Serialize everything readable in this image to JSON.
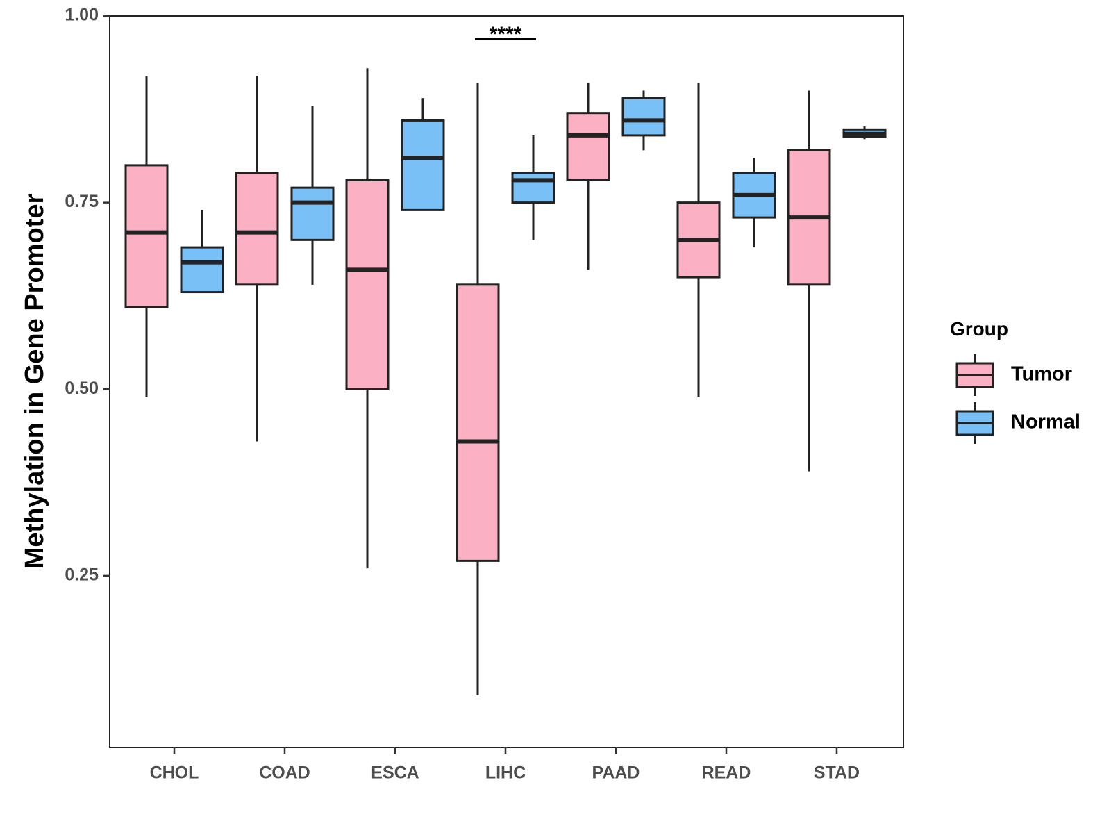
{
  "chart_data": {
    "type": "boxplot",
    "title": "",
    "xlabel": "",
    "ylabel": "Methylation in Gene Promoter",
    "ylim": [
      0.02,
      1.0
    ],
    "yticks": [
      0.25,
      0.5,
      0.75,
      1.0
    ],
    "ytick_labels": [
      "0.25",
      "0.50",
      "0.75",
      "1.00"
    ],
    "categories": [
      "CHOL",
      "COAD",
      "ESCA",
      "LIHC",
      "PAAD",
      "READ",
      "STAD"
    ],
    "legend": {
      "title": "Group",
      "position": "right",
      "entries": [
        {
          "name": "Tumor",
          "color": "#FBB1C3"
        },
        {
          "name": "Normal",
          "color": "#79C0F7"
        }
      ]
    },
    "series": [
      {
        "name": "Tumor",
        "color": "#FBB1C3",
        "boxes": [
          {
            "category": "CHOL",
            "min": 0.49,
            "q1": 0.61,
            "median": 0.71,
            "q3": 0.8,
            "max": 0.92
          },
          {
            "category": "COAD",
            "min": 0.43,
            "q1": 0.64,
            "median": 0.71,
            "q3": 0.79,
            "max": 0.92
          },
          {
            "category": "ESCA",
            "min": 0.26,
            "q1": 0.5,
            "median": 0.66,
            "q3": 0.78,
            "max": 0.93
          },
          {
            "category": "LIHC",
            "min": 0.09,
            "q1": 0.27,
            "median": 0.43,
            "q3": 0.64,
            "max": 0.91
          },
          {
            "category": "PAAD",
            "min": 0.66,
            "q1": 0.78,
            "median": 0.84,
            "q3": 0.87,
            "max": 0.91
          },
          {
            "category": "READ",
            "min": 0.49,
            "q1": 0.65,
            "median": 0.7,
            "q3": 0.75,
            "max": 0.91
          },
          {
            "category": "STAD",
            "min": 0.39,
            "q1": 0.64,
            "median": 0.73,
            "q3": 0.82,
            "max": 0.9
          }
        ]
      },
      {
        "name": "Normal",
        "color": "#79C0F7",
        "boxes": [
          {
            "category": "CHOL",
            "min": 0.63,
            "q1": 0.63,
            "median": 0.67,
            "q3": 0.69,
            "max": 0.74
          },
          {
            "category": "COAD",
            "min": 0.64,
            "q1": 0.7,
            "median": 0.75,
            "q3": 0.77,
            "max": 0.88
          },
          {
            "category": "ESCA",
            "min": 0.74,
            "q1": 0.74,
            "median": 0.81,
            "q3": 0.86,
            "max": 0.89
          },
          {
            "category": "LIHC",
            "min": 0.7,
            "q1": 0.75,
            "median": 0.78,
            "q3": 0.79,
            "max": 0.84
          },
          {
            "category": "PAAD",
            "min": 0.82,
            "q1": 0.84,
            "median": 0.86,
            "q3": 0.89,
            "max": 0.9
          },
          {
            "category": "READ",
            "min": 0.69,
            "q1": 0.73,
            "median": 0.76,
            "q3": 0.79,
            "max": 0.81
          },
          {
            "category": "STAD",
            "min": 0.835,
            "q1": 0.838,
            "median": 0.842,
            "q3": 0.848,
            "max": 0.853
          }
        ]
      }
    ],
    "annotations": [
      {
        "category": "LIHC",
        "text": "****",
        "y": 0.97
      }
    ]
  }
}
